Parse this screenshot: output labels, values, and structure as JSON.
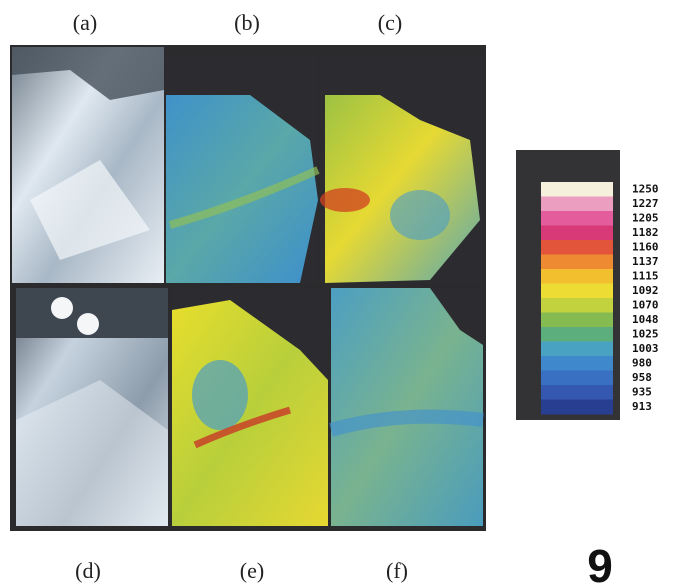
{
  "panel_labels": [
    "(a)",
    "(b)",
    "(c)",
    "(d)",
    "(e)",
    "(f)"
  ],
  "colorbar": {
    "labels": [
      "1250",
      "1227",
      "1205",
      "1182",
      "1160",
      "1137",
      "1115",
      "1092",
      "1070",
      "1048",
      "1025",
      "1003",
      "980",
      "958",
      "935",
      "913"
    ]
  },
  "figure_number": "9"
}
